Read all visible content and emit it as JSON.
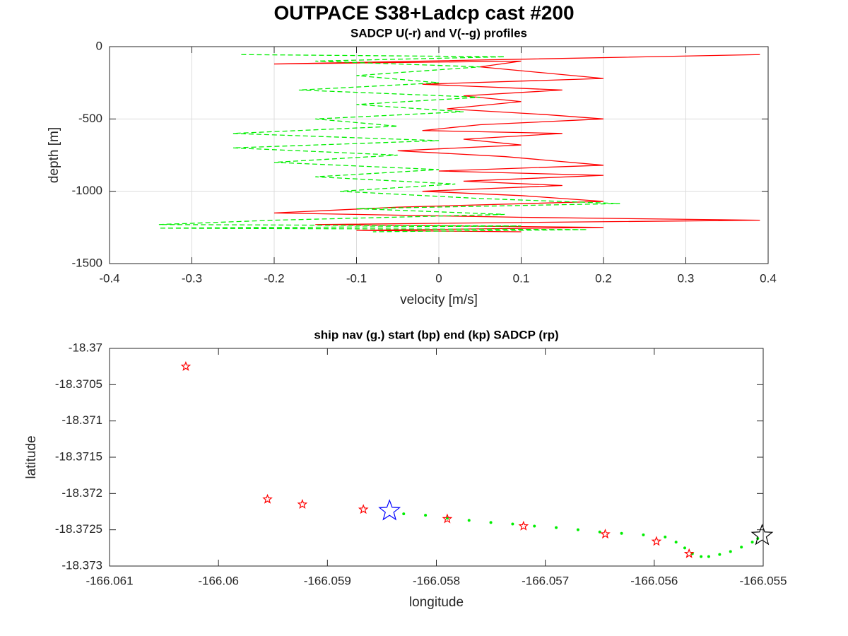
{
  "figure_title": "OUTPACE S38+Ladcp cast #200",
  "chart_data": [
    {
      "type": "line",
      "title": "SADCP U(-r) and V(--g) profiles",
      "xlabel": "velocity [m/s]",
      "ylabel": "depth [m]",
      "xlim": [
        -0.4,
        0.4
      ],
      "ylim": [
        -1500,
        0
      ],
      "xticks": [
        -0.4,
        -0.3,
        -0.2,
        -0.1,
        0,
        0.1,
        0.2,
        0.3,
        0.4
      ],
      "yticks": [
        -1500,
        -1000,
        -500,
        0
      ],
      "grid": true,
      "series": [
        {
          "color": "#ff0000",
          "dash": false,
          "x": [
            0.39,
            -0.2,
            0.1,
            0.05,
            0.2,
            -0.02,
            0.15,
            0.03,
            0.1,
            0.01,
            0.13,
            0.2,
            0.05,
            -0.02,
            0.15,
            0.03,
            0.1,
            -0.05,
            0.08,
            0.2,
            0.0,
            0.2,
            0.03,
            0.15,
            -0.02,
            0.1,
            0.2,
            -0.05,
            -0.2,
            0.1,
            0.39,
            -0.15,
            0.2,
            -0.1,
            0.1
          ],
          "y": [
            -55,
            -120,
            -100,
            -140,
            -220,
            -260,
            -300,
            -340,
            -380,
            -430,
            -470,
            -500,
            -540,
            -580,
            -600,
            -640,
            -680,
            -720,
            -760,
            -820,
            -860,
            -890,
            -930,
            -960,
            -1000,
            -1030,
            -1070,
            -1110,
            -1150,
            -1180,
            -1200,
            -1230,
            -1250,
            -1270,
            -1280
          ]
        },
        {
          "color": "#00ee00",
          "dash": true,
          "x": [
            -0.24,
            0.08,
            -0.15,
            0.05,
            -0.1,
            0.0,
            -0.17,
            0.05,
            -0.1,
            0.03,
            -0.15,
            -0.05,
            -0.25,
            0.0,
            -0.25,
            -0.05,
            -0.2,
            0.0,
            -0.15,
            0.02,
            -0.12,
            0.05,
            0.22,
            -0.1,
            0.08,
            -0.2,
            -0.34,
            0.1,
            -0.34,
            0.18,
            -0.08
          ],
          "y": [
            -55,
            -70,
            -100,
            -140,
            -200,
            -250,
            -300,
            -350,
            -400,
            -450,
            -500,
            -550,
            -600,
            -650,
            -700,
            -750,
            -800,
            -850,
            -900,
            -950,
            -1000,
            -1050,
            -1085,
            -1120,
            -1160,
            -1200,
            -1230,
            -1240,
            -1255,
            -1265,
            -1280
          ]
        }
      ]
    },
    {
      "type": "scatter",
      "title": "ship nav (g.) start (bp) end (kp) SADCP (rp)",
      "xlabel": "longitude",
      "ylabel": "latitude",
      "xlim": [
        -166.061,
        -166.055
      ],
      "ylim": [
        -18.373,
        -18.37
      ],
      "xticks": [
        -166.061,
        -166.06,
        -166.059,
        -166.058,
        -166.057,
        -166.056,
        -166.055
      ],
      "yticks": [
        -18.373,
        -18.3725,
        -18.372,
        -18.3715,
        -18.371,
        -18.3705,
        -18.37
      ],
      "grid": false,
      "series": [
        {
          "color": "#00ee00",
          "marker": "dot",
          "marker_size": 2,
          "x": [
            -166.0583,
            -166.0581,
            -166.0579,
            -166.0577,
            -166.0575,
            -166.0573,
            -166.0571,
            -166.0569,
            -166.0567,
            -166.0565,
            -166.0563,
            -166.0561,
            -166.0559,
            -166.0558,
            -166.05572,
            -166.05565,
            -166.05557,
            -166.0555,
            -166.0554,
            -166.0553,
            -166.0552,
            -166.0551,
            -166.05505
          ],
          "y": [
            -18.37228,
            -18.3723,
            -18.37234,
            -18.37237,
            -18.3724,
            -18.37242,
            -18.37245,
            -18.37247,
            -18.3725,
            -18.37253,
            -18.37255,
            -18.37257,
            -18.3726,
            -18.37267,
            -18.37275,
            -18.37283,
            -18.37287,
            -18.37287,
            -18.37284,
            -18.3728,
            -18.37274,
            -18.37267,
            -18.37262
          ]
        },
        {
          "color": "#ff0000",
          "marker": "star",
          "marker_size": 6,
          "x": [
            -166.0603,
            -166.05955,
            -166.05923,
            -166.05867,
            -166.0579,
            -166.0572,
            -166.05645,
            -166.05598,
            -166.05568
          ],
          "y": [
            -18.37025,
            -18.37208,
            -18.37215,
            -18.37222,
            -18.37235,
            -18.37245,
            -18.37256,
            -18.37266,
            -18.37283
          ]
        },
        {
          "color": "#0000ff",
          "marker": "star",
          "marker_size": 15,
          "x": [
            -166.05843
          ],
          "y": [
            -18.37224
          ]
        },
        {
          "color": "#000000",
          "marker": "star",
          "marker_size": 15,
          "x": [
            -166.05501
          ],
          "y": [
            -18.37258
          ]
        }
      ]
    }
  ]
}
